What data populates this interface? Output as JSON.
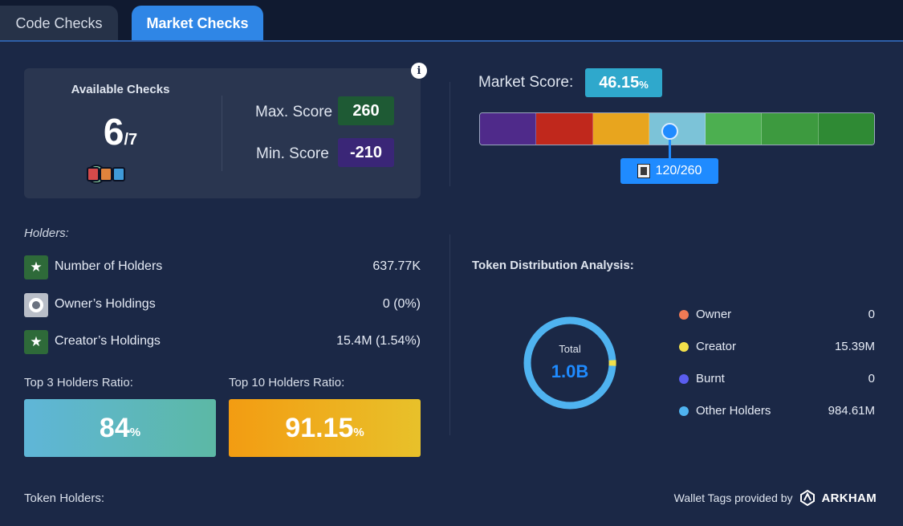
{
  "tabs": [
    {
      "label": "Code Checks",
      "active": false
    },
    {
      "label": "Market Checks",
      "active": true
    }
  ],
  "available_checks": {
    "title": "Available Checks",
    "count": "6",
    "total": "/7",
    "max_label": "Max. Score",
    "max_value": "260",
    "min_label": "Min. Score",
    "min_value": "-210"
  },
  "market_score": {
    "label": "Market Score:",
    "percent": "46.15",
    "percent_unit": "%",
    "marker_text": "120/260",
    "marker_fraction": 0.6,
    "segment_colors": [
      "#4f2a8a",
      "#c0281c",
      "#e8a51e",
      "#7cc3d8",
      "#4caf50",
      "#3d9a3f",
      "#2f8a34"
    ]
  },
  "holders": {
    "section_label": "Holders:",
    "rows": [
      {
        "label": "Number of Holders",
        "value": "637.77K",
        "icon": "star-icon"
      },
      {
        "label": "Owner’s Holdings",
        "value": "0 (0%)",
        "icon": "ring-icon"
      },
      {
        "label": "Creator’s Holdings",
        "value": "15.4M (1.54%)",
        "icon": "star-icon"
      }
    ],
    "top3_label": "Top 3 Holders Ratio:",
    "top3_value": "84",
    "top10_label": "Top 10 Holders Ratio:",
    "top10_value": "91.15",
    "percent_unit": "%",
    "token_holders_label": "Token Holders:"
  },
  "distribution": {
    "title": "Token Distribution Analysis:",
    "total_label": "Total",
    "total_value": "1.0B",
    "legend": [
      {
        "name": "Owner",
        "value": "0",
        "color": "#f07a55"
      },
      {
        "name": "Creator",
        "value": "15.39M",
        "color": "#f2e04a"
      },
      {
        "name": "Burnt",
        "value": "0",
        "color": "#5a5df0"
      },
      {
        "name": "Other Holders",
        "value": "984.61M",
        "color": "#4fb3f0"
      }
    ]
  },
  "footer": {
    "provided_by": "Wallet Tags provided by",
    "brand": "ARKHAM"
  }
}
